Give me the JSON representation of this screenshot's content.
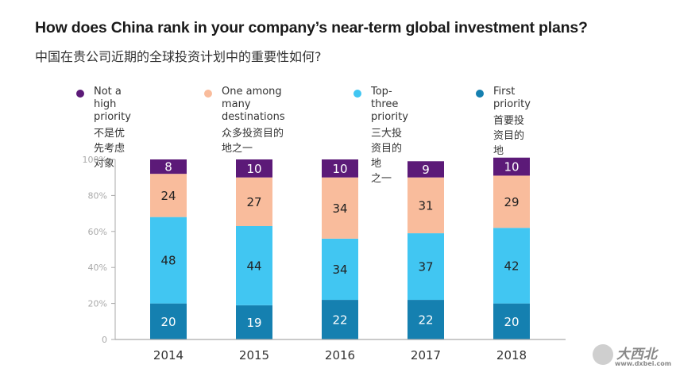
{
  "header": {
    "title": "How does China rank in your company’s near-term global investment plans?",
    "subtitle": "中国在贵公司近期的全球投资计划中的重要性如何?"
  },
  "legend": [
    {
      "en": "Not a high priority",
      "en_lines": [
        "Not a high",
        "priority"
      ],
      "zh_lines": [
        "不是优先考虑对象"
      ],
      "color": "#5c1a78"
    },
    {
      "en": "One among many destinations",
      "en_lines": [
        "One among many",
        "destinations"
      ],
      "zh_lines": [
        "众多投资目的地之一"
      ],
      "color": "#f9bc9c"
    },
    {
      "en": "Top-three priority",
      "en_lines": [
        "Top-three",
        "priority"
      ],
      "zh_lines": [
        "三大投资目的地",
        "之一"
      ],
      "color": "#41c6f2"
    },
    {
      "en": "First priority",
      "en_lines": [
        "First priority"
      ],
      "zh_lines": [
        "首要投资目的地"
      ],
      "color": "#1580b0"
    }
  ],
  "chart_data": {
    "type": "bar",
    "stacked": true,
    "title": "How does China rank in your company’s near-term global investment plans?",
    "subtitle": "中国在贵公司近期的全球投资计划中的重要性如何?",
    "xlabel": "",
    "ylabel": "",
    "categories": [
      "2014",
      "2015",
      "2016",
      "2017",
      "2018"
    ],
    "ylim": [
      0,
      100
    ],
    "yticks": [
      0,
      20,
      40,
      60,
      80,
      100
    ],
    "ytick_labels": [
      "0",
      "20%",
      "40%",
      "60%",
      "80%",
      "100%"
    ],
    "grid": false,
    "legend_position": "top",
    "series": [
      {
        "name": "First priority",
        "color": "#1580b0",
        "label_color": "#ffffff",
        "values": [
          20,
          19,
          22,
          22,
          20
        ]
      },
      {
        "name": "Top-three priority",
        "color": "#41c6f2",
        "label_color": "#222222",
        "values": [
          48,
          44,
          34,
          37,
          42
        ]
      },
      {
        "name": "One among many destinations",
        "color": "#f9bc9c",
        "label_color": "#222222",
        "values": [
          24,
          27,
          34,
          31,
          29
        ]
      },
      {
        "name": "Not a high priority",
        "color": "#5c1a78",
        "label_color": "#ffffff",
        "values": [
          8,
          10,
          10,
          9,
          10
        ]
      }
    ]
  },
  "watermark": {
    "zh": "大西北",
    "url": "www.dxbei.com"
  }
}
